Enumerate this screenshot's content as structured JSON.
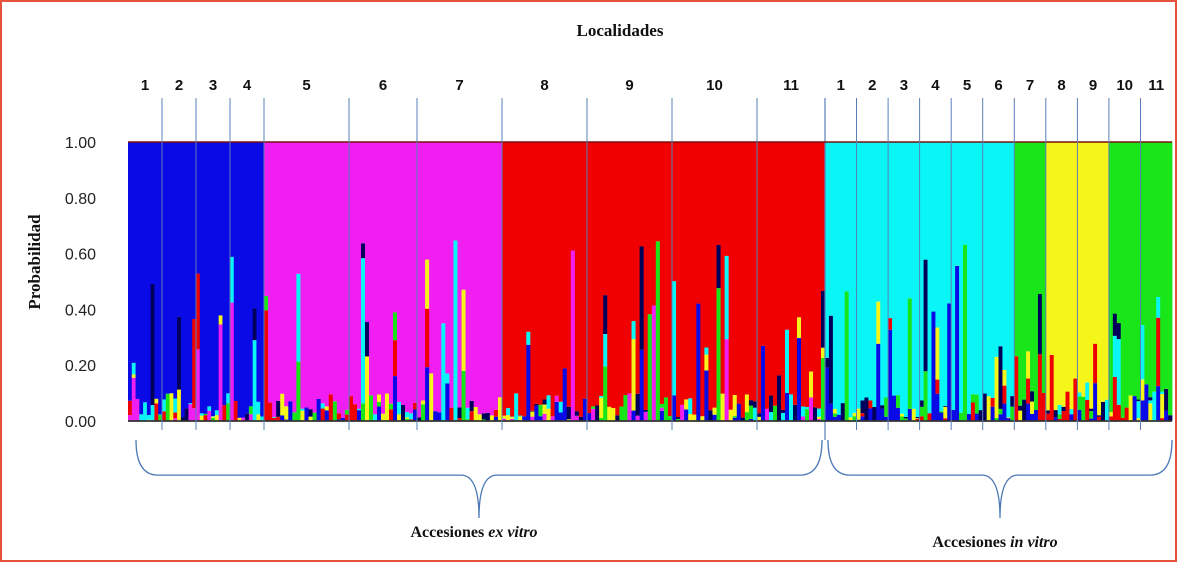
{
  "chart_data": {
    "type": "bar",
    "subtype": "stacked-structure-barplot",
    "title": "Localidades",
    "ylabel": "Probabilidad",
    "ylim": [
      0,
      1
    ],
    "yticks": [
      "0.00",
      "0.20",
      "0.40",
      "0.60",
      "0.80",
      "1.00"
    ],
    "grid": false,
    "colors": {
      "blue": "#0a0ae6",
      "magenta": "#f01ef0",
      "red": "#f00000",
      "green": "#19e619",
      "yellow": "#f5f519",
      "cyan": "#0af5f5",
      "navy": "#00005a"
    },
    "groups": [
      {
        "name": "Accesiones ex vitro",
        "label_prefix": "Accesiones ",
        "label_italic": "ex vitro",
        "localities": [
          {
            "label": "1",
            "dominant": "blue",
            "weight": 2
          },
          {
            "label": "2",
            "dominant": "blue",
            "weight": 2
          },
          {
            "label": "3",
            "dominant": "blue",
            "weight": 2
          },
          {
            "label": "4",
            "dominant": "blue",
            "weight": 2
          },
          {
            "label": "5",
            "dominant": "magenta",
            "weight": 5
          },
          {
            "label": "6",
            "dominant": "magenta",
            "weight": 4
          },
          {
            "label": "7",
            "dominant": "magenta",
            "weight": 5
          },
          {
            "label": "8",
            "dominant": "red",
            "weight": 5
          },
          {
            "label": "9",
            "dominant": "red",
            "weight": 5
          },
          {
            "label": "10",
            "dominant": "red",
            "weight": 5
          },
          {
            "label": "11",
            "dominant": "red",
            "weight": 4
          }
        ]
      },
      {
        "name": "Accesiones in vitro",
        "label_prefix": "Accesiones ",
        "label_italic": "in vitro",
        "localities": [
          {
            "label": "1",
            "dominant": "cyan",
            "weight": 2
          },
          {
            "label": "2",
            "dominant": "cyan",
            "weight": 2
          },
          {
            "label": "3",
            "dominant": "cyan",
            "weight": 2
          },
          {
            "label": "4",
            "dominant": "cyan",
            "weight": 2
          },
          {
            "label": "5",
            "dominant": "cyan",
            "weight": 2
          },
          {
            "label": "6",
            "dominant": "cyan",
            "weight": 2
          },
          {
            "label": "7",
            "dominant": "green",
            "weight": 2
          },
          {
            "label": "8",
            "dominant": "yellow",
            "weight": 2
          },
          {
            "label": "9",
            "dominant": "yellow",
            "weight": 2
          },
          {
            "label": "10",
            "dominant": "green",
            "weight": 2
          },
          {
            "label": "11",
            "dominant": "green",
            "weight": 2
          }
        ]
      }
    ]
  }
}
